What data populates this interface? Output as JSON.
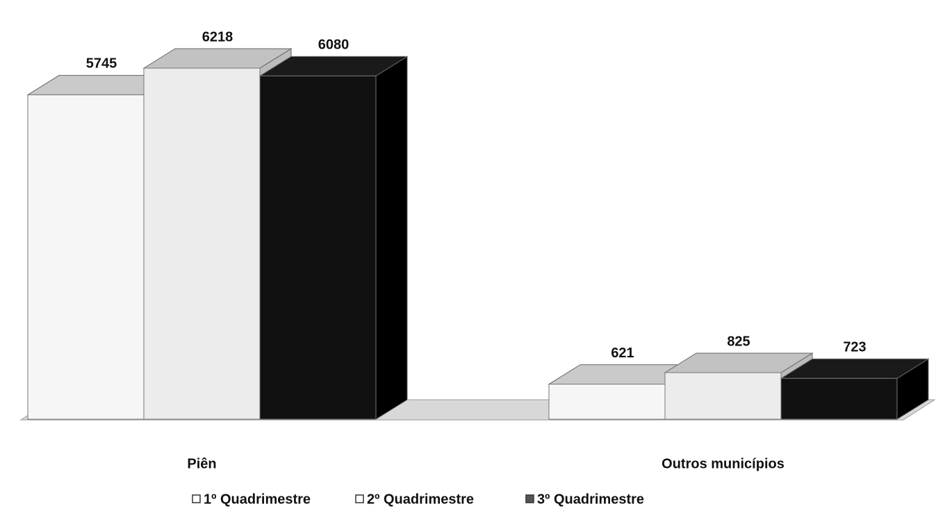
{
  "chart_data": {
    "type": "bar",
    "categories": [
      "Piên",
      "Outros municípios"
    ],
    "series": [
      {
        "name": "1º Quadrimestre",
        "color": "#f6f6f6",
        "values": [
          5745,
          621
        ]
      },
      {
        "name": "2º Quadrimestre",
        "color": "#ececec",
        "values": [
          6218,
          825
        ]
      },
      {
        "name": "3º Quadrimestre",
        "color": "#111111",
        "values": [
          6080,
          723
        ]
      }
    ],
    "legend": "bottom"
  }
}
